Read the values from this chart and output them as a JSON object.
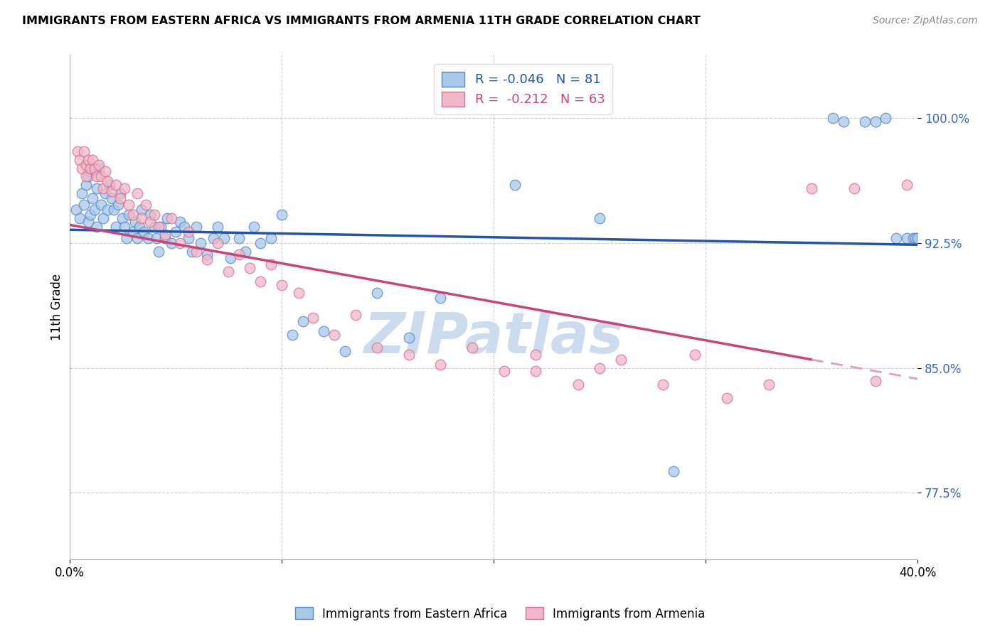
{
  "title": "IMMIGRANTS FROM EASTERN AFRICA VS IMMIGRANTS FROM ARMENIA 11TH GRADE CORRELATION CHART",
  "source": "Source: ZipAtlas.com",
  "ylabel": "11th Grade",
  "yticks": [
    0.775,
    0.85,
    0.925,
    1.0
  ],
  "ytick_labels": [
    "77.5%",
    "85.0%",
    "92.5%",
    "100.0%"
  ],
  "xlim": [
    0.0,
    0.4
  ],
  "ylim": [
    0.735,
    1.038
  ],
  "R_blue": -0.046,
  "N_blue": 81,
  "R_pink": -0.212,
  "N_pink": 63,
  "color_blue_fill": "#a8c8e8",
  "color_blue_edge": "#5588cc",
  "color_blue_line": "#2255aa",
  "color_pink_fill": "#f0b8c8",
  "color_pink_edge": "#d87090",
  "color_pink_line": "#cc4477",
  "color_pink_dash": "#e0a0b8",
  "watermark_color": "#ccdcee",
  "legend_label_blue": "Immigrants from Eastern Africa",
  "legend_label_pink": "Immigrants from Armenia",
  "blue_line_y0": 0.933,
  "blue_line_y1": 0.924,
  "pink_line_y0": 0.936,
  "pink_line_y1_solid": 0.855,
  "pink_line_x1_solid": 0.35,
  "pink_line_y1_dash": 0.845,
  "blue_x": [
    0.003,
    0.005,
    0.006,
    0.007,
    0.008,
    0.009,
    0.009,
    0.01,
    0.01,
    0.011,
    0.012,
    0.013,
    0.013,
    0.014,
    0.015,
    0.016,
    0.017,
    0.018,
    0.019,
    0.02,
    0.021,
    0.022,
    0.023,
    0.024,
    0.025,
    0.026,
    0.027,
    0.028,
    0.03,
    0.031,
    0.032,
    0.033,
    0.034,
    0.035,
    0.037,
    0.038,
    0.04,
    0.041,
    0.042,
    0.043,
    0.045,
    0.046,
    0.048,
    0.05,
    0.052,
    0.054,
    0.056,
    0.058,
    0.06,
    0.062,
    0.065,
    0.068,
    0.07,
    0.073,
    0.076,
    0.08,
    0.083,
    0.087,
    0.09,
    0.095,
    0.1,
    0.105,
    0.11,
    0.12,
    0.13,
    0.145,
    0.16,
    0.175,
    0.21,
    0.25,
    0.285,
    0.36,
    0.365,
    0.375,
    0.38,
    0.385,
    0.39,
    0.395,
    0.398,
    0.399,
    0.4
  ],
  "blue_y": [
    0.945,
    0.94,
    0.955,
    0.948,
    0.96,
    0.965,
    0.938,
    0.942,
    0.968,
    0.952,
    0.945,
    0.958,
    0.935,
    0.97,
    0.948,
    0.94,
    0.955,
    0.945,
    0.96,
    0.952,
    0.945,
    0.935,
    0.948,
    0.955,
    0.94,
    0.935,
    0.928,
    0.942,
    0.932,
    0.938,
    0.928,
    0.935,
    0.945,
    0.932,
    0.928,
    0.942,
    0.935,
    0.928,
    0.92,
    0.935,
    0.928,
    0.94,
    0.925,
    0.932,
    0.938,
    0.935,
    0.928,
    0.92,
    0.935,
    0.925,
    0.918,
    0.928,
    0.935,
    0.928,
    0.916,
    0.928,
    0.92,
    0.935,
    0.925,
    0.928,
    0.942,
    0.87,
    0.878,
    0.872,
    0.86,
    0.895,
    0.868,
    0.892,
    0.96,
    0.94,
    0.788,
    1.0,
    0.998,
    0.998,
    0.998,
    1.0,
    0.928,
    0.928,
    0.928,
    0.928,
    0.928
  ],
  "pink_x": [
    0.004,
    0.005,
    0.006,
    0.007,
    0.008,
    0.008,
    0.009,
    0.01,
    0.011,
    0.012,
    0.013,
    0.014,
    0.015,
    0.016,
    0.017,
    0.018,
    0.02,
    0.022,
    0.024,
    0.026,
    0.028,
    0.03,
    0.032,
    0.034,
    0.036,
    0.038,
    0.04,
    0.042,
    0.045,
    0.048,
    0.052,
    0.056,
    0.06,
    0.065,
    0.07,
    0.075,
    0.08,
    0.085,
    0.09,
    0.095,
    0.1,
    0.108,
    0.115,
    0.125,
    0.135,
    0.145,
    0.16,
    0.175,
    0.19,
    0.205,
    0.22,
    0.24,
    0.26,
    0.28,
    0.295,
    0.22,
    0.25,
    0.31,
    0.33,
    0.35,
    0.37,
    0.38,
    0.395
  ],
  "pink_y": [
    0.98,
    0.975,
    0.97,
    0.98,
    0.972,
    0.965,
    0.975,
    0.97,
    0.975,
    0.97,
    0.965,
    0.972,
    0.965,
    0.958,
    0.968,
    0.962,
    0.956,
    0.96,
    0.952,
    0.958,
    0.948,
    0.942,
    0.955,
    0.94,
    0.948,
    0.938,
    0.942,
    0.935,
    0.93,
    0.94,
    0.925,
    0.932,
    0.92,
    0.915,
    0.925,
    0.908,
    0.918,
    0.91,
    0.902,
    0.912,
    0.9,
    0.895,
    0.88,
    0.87,
    0.882,
    0.862,
    0.858,
    0.852,
    0.862,
    0.848,
    0.858,
    0.84,
    0.855,
    0.84,
    0.858,
    0.848,
    0.85,
    0.832,
    0.84,
    0.958,
    0.958,
    0.842,
    0.96
  ]
}
